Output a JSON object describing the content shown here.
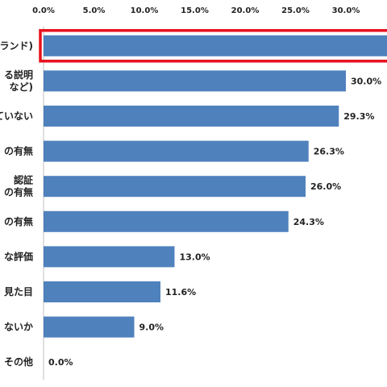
{
  "chart_data": {
    "type": "bar",
    "orientation": "horizontal",
    "x_ticks": [
      "0.0%",
      "5.0%",
      "10.0%",
      "15.0%",
      "20.0%",
      "25.0%",
      "30.0%",
      "3"
    ],
    "xlim": [
      0,
      35
    ],
    "categories": [
      [
        "ランド)"
      ],
      [
        "る説明",
        "など)"
      ],
      [
        "ていない"
      ],
      [
        "の有無"
      ],
      [
        "認証",
        "の有無"
      ],
      [
        "の有無"
      ],
      [
        "な評価"
      ],
      [
        "見た目"
      ],
      [
        "ないか"
      ],
      [
        "その他"
      ]
    ],
    "values": [
      null,
      30.0,
      29.3,
      26.3,
      26.0,
      24.3,
      13.0,
      11.6,
      9.0,
      0.0
    ],
    "value_labels": [
      "",
      "30.0%",
      "29.3%",
      "26.3%",
      "26.0%",
      "24.3%",
      "13.0%",
      "11.6%",
      "9.0%",
      "0.0%"
    ],
    "highlighted_index": 0,
    "bar_color": "#4f81bd",
    "highlight_color": "#e8101d",
    "grid": false
  }
}
